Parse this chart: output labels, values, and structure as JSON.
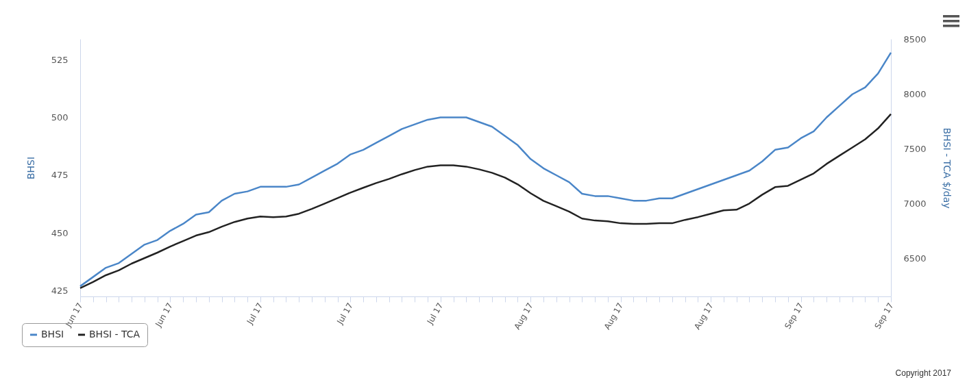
{
  "chart_data": {
    "type": "line",
    "ylabel": "BHSI",
    "y2label": "BHSI - TCA $/day",
    "categories": [
      "Jun 17",
      null,
      null,
      null,
      null,
      null,
      null,
      "Jun 17",
      null,
      null,
      null,
      null,
      null,
      null,
      "Jul 17",
      null,
      null,
      null,
      null,
      null,
      null,
      "Jul 17",
      null,
      null,
      null,
      null,
      null,
      null,
      "Jul 17",
      null,
      null,
      null,
      null,
      null,
      null,
      "Aug 17",
      null,
      null,
      null,
      null,
      null,
      null,
      "Aug 17",
      null,
      null,
      null,
      null,
      null,
      null,
      "Aug 17",
      null,
      null,
      null,
      null,
      null,
      null,
      "Sep 17",
      null,
      null,
      null,
      null,
      null,
      null,
      "Sep 17"
    ],
    "series": [
      {
        "name": "BHSI",
        "color": "#4a86c8",
        "values": [
          427,
          431,
          435,
          437,
          441,
          445,
          447,
          451,
          454,
          458,
          459,
          464,
          467,
          468,
          470,
          470,
          470,
          471,
          474,
          477,
          480,
          484,
          486,
          489,
          492,
          495,
          497,
          499,
          500,
          500,
          500,
          498,
          496,
          492,
          488,
          482,
          478,
          475,
          472,
          467,
          466,
          466,
          465,
          464,
          464,
          465,
          465,
          467,
          469,
          471,
          473,
          475,
          477,
          481,
          486,
          487,
          491,
          494,
          500,
          505,
          510,
          513,
          519,
          528
        ]
      },
      {
        "name": "BHSI - TCA",
        "color": "#222222",
        "axis": "y2",
        "values": [
          6226,
          6282,
          6344,
          6388,
          6450,
          6500,
          6550,
          6606,
          6656,
          6706,
          6737,
          6787,
          6830,
          6861,
          6880,
          6874,
          6880,
          6905,
          6949,
          6998,
          7048,
          7098,
          7142,
          7185,
          7223,
          7266,
          7304,
          7335,
          7347,
          7347,
          7335,
          7310,
          7279,
          7235,
          7173,
          7092,
          7023,
          6974,
          6924,
          6861,
          6843,
          6836,
          6818,
          6812,
          6812,
          6818,
          6818,
          6849,
          6874,
          6905,
          6936,
          6942,
          6998,
          7079,
          7148,
          7160,
          7217,
          7273,
          7360,
          7435,
          7509,
          7584,
          7684,
          7815
        ]
      }
    ],
    "ylim": [
      422.6,
      533.9
    ],
    "yticks": [
      425,
      450,
      475,
      500,
      525
    ],
    "y2lim": [
      6150,
      8500
    ],
    "y2ticks": [
      6500,
      7000,
      7500,
      8000,
      8500
    ],
    "grid": false,
    "legend": "bottom left",
    "marker": "none",
    "line_style": "solid",
    "annotations": [
      "Copyright 2017"
    ]
  }
}
